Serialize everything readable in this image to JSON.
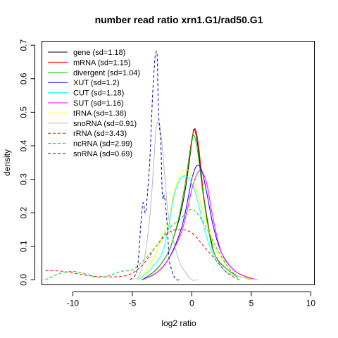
{
  "chart_data": {
    "type": "line",
    "title": "number read ratio xrn1.G1/rad50.G1",
    "xlabel": "log2 ratio",
    "ylabel": "density",
    "xlim": [
      -12.6,
      10.3
    ],
    "ylim": [
      -0.015,
      0.712
    ],
    "xticks": [
      -10,
      -5,
      0,
      5,
      10
    ],
    "yticks": [
      0.0,
      0.1,
      0.2,
      0.3,
      0.4,
      0.5,
      0.6,
      0.7
    ],
    "xtick_labels": [
      "-10",
      "-5",
      "0",
      "5",
      "10"
    ],
    "ytick_labels": [
      "0.0",
      "0.1",
      "0.2",
      "0.3",
      "0.4",
      "0.5",
      "0.6",
      "0.7"
    ],
    "grid": false,
    "legend_position": "top-left",
    "series": [
      {
        "name": "gene (sd=1.18)",
        "color": "#000000",
        "dash": "solid",
        "x": [
          -4.2,
          -3,
          -2,
          -1.5,
          -1,
          -0.5,
          0,
          0.2,
          0.5,
          1,
          1.5,
          2,
          3,
          4,
          5.5
        ],
        "y": [
          0.0,
          0.03,
          0.08,
          0.13,
          0.19,
          0.28,
          0.41,
          0.45,
          0.4,
          0.25,
          0.14,
          0.07,
          0.03,
          0.01,
          0.0
        ]
      },
      {
        "name": "mRNA (sd=1.15)",
        "color": "#ff0000",
        "dash": "solid",
        "x": [
          -4.2,
          -3,
          -2,
          -1.5,
          -1,
          -0.5,
          0,
          0.3,
          0.6,
          1,
          1.5,
          2,
          3,
          4,
          5.5
        ],
        "y": [
          0.0,
          0.03,
          0.08,
          0.13,
          0.2,
          0.3,
          0.42,
          0.45,
          0.39,
          0.25,
          0.13,
          0.07,
          0.03,
          0.01,
          0.0
        ]
      },
      {
        "name": "divergent (sd=1.04)",
        "color": "#00cc00",
        "dash": "solid",
        "x": [
          -4.2,
          -3,
          -2,
          -1.5,
          -1,
          -0.5,
          0,
          0.2,
          0.5,
          1,
          1.5,
          2,
          3,
          4,
          5.5
        ],
        "y": [
          0.0,
          0.03,
          0.08,
          0.13,
          0.2,
          0.3,
          0.41,
          0.43,
          0.38,
          0.24,
          0.13,
          0.07,
          0.03,
          0.01,
          0.0
        ]
      },
      {
        "name": "XUT (sd=1.2)",
        "color": "#0000ff",
        "dash": "solid",
        "x": [
          -4.2,
          -3,
          -2,
          -1,
          -0.5,
          0,
          0.4,
          0.8,
          1.2,
          1.8,
          2.5,
          3.5,
          4.5,
          5.5
        ],
        "y": [
          0.0,
          0.02,
          0.06,
          0.14,
          0.21,
          0.3,
          0.34,
          0.33,
          0.27,
          0.16,
          0.08,
          0.03,
          0.01,
          0.0
        ]
      },
      {
        "name": "CUT (sd=1.18)",
        "color": "#00ffff",
        "dash": "solid",
        "x": [
          -4.5,
          -3.5,
          -2.5,
          -2,
          -1.5,
          -1,
          -0.6,
          -0.2,
          0.2,
          0.6,
          1,
          1.5,
          2,
          3,
          4,
          5
        ],
        "y": [
          0.0,
          0.03,
          0.08,
          0.15,
          0.25,
          0.3,
          0.31,
          0.3,
          0.27,
          0.22,
          0.16,
          0.1,
          0.06,
          0.02,
          0.01,
          0.0
        ]
      },
      {
        "name": "SUT (sd=1.16)",
        "color": "#ff00ff",
        "dash": "solid",
        "x": [
          -4.2,
          -3,
          -2,
          -1,
          -0.5,
          0,
          0.5,
          0.9,
          1.3,
          1.8,
          2.5,
          3.5,
          4.5,
          5.5
        ],
        "y": [
          0.0,
          0.02,
          0.06,
          0.13,
          0.19,
          0.27,
          0.32,
          0.32,
          0.28,
          0.18,
          0.08,
          0.03,
          0.01,
          0.0
        ]
      },
      {
        "name": "tRNA (sd=1.38)",
        "color": "#ffff00",
        "dash": "solid",
        "x": [
          -5,
          -4,
          -3,
          -2,
          -1.5,
          -1,
          -0.5,
          0,
          0.5,
          1,
          1.5,
          2,
          3,
          4,
          5.5
        ],
        "y": [
          0.0,
          0.02,
          0.08,
          0.18,
          0.26,
          0.31,
          0.33,
          0.31,
          0.26,
          0.2,
          0.14,
          0.09,
          0.04,
          0.01,
          0.0
        ]
      },
      {
        "name": "snoRNA (sd=0.91)",
        "color": "#bbbbbb",
        "dash": "solid",
        "x": [
          -4.6,
          -4,
          -3.5,
          -3.2,
          -3,
          -2.8,
          -2.6,
          -2.3,
          -2,
          -1.5,
          -1,
          -0.5,
          0,
          0.5
        ],
        "y": [
          0.0,
          0.06,
          0.2,
          0.35,
          0.45,
          0.47,
          0.44,
          0.32,
          0.2,
          0.11,
          0.05,
          0.02,
          0.0,
          0.0
        ]
      },
      {
        "name": "rRNA (sd=3.43)",
        "color": "#ff0000",
        "dash": "dashed",
        "x": [
          -12.3,
          -11,
          -10,
          -8,
          -6,
          -5,
          -4,
          -3,
          -2,
          -1,
          0,
          1,
          2,
          3,
          4
        ],
        "y": [
          0.027,
          0.026,
          0.02,
          0.01,
          0.01,
          0.02,
          0.05,
          0.1,
          0.14,
          0.15,
          0.14,
          0.1,
          0.06,
          0.02,
          0.0
        ]
      },
      {
        "name": "ncRNA (sd=2.99)",
        "color": "#00cc00",
        "dash": "dashed",
        "x": [
          -12.3,
          -11,
          -10,
          -9,
          -8,
          -7,
          -6,
          -5,
          -4,
          -3,
          -2,
          -1,
          0,
          1,
          2,
          3,
          4
        ],
        "y": [
          0.0,
          0.02,
          0.025,
          0.018,
          0.008,
          0.012,
          0.025,
          0.03,
          0.06,
          0.1,
          0.15,
          0.18,
          0.21,
          0.17,
          0.1,
          0.04,
          0.0
        ]
      },
      {
        "name": "snRNA (sd=0.69)",
        "color": "#0000aa",
        "dash": "dashed",
        "x": [
          -5.2,
          -4.6,
          -4.3,
          -4.1,
          -3.9,
          -3.7,
          -3.5,
          -3.3,
          -3.1,
          -3.0,
          -2.9,
          -2.8,
          -2.6,
          -2.5,
          -2.4,
          -2.3,
          -2.1,
          -2.0,
          -1.9,
          -1.7,
          -1.5,
          -1.3,
          -1.0
        ],
        "y": [
          0.0,
          0.03,
          0.16,
          0.23,
          0.2,
          0.27,
          0.38,
          0.55,
          0.66,
          0.68,
          0.66,
          0.5,
          0.4,
          0.27,
          0.24,
          0.25,
          0.18,
          0.12,
          0.06,
          0.03,
          0.01,
          0.0,
          0.0
        ]
      }
    ]
  }
}
